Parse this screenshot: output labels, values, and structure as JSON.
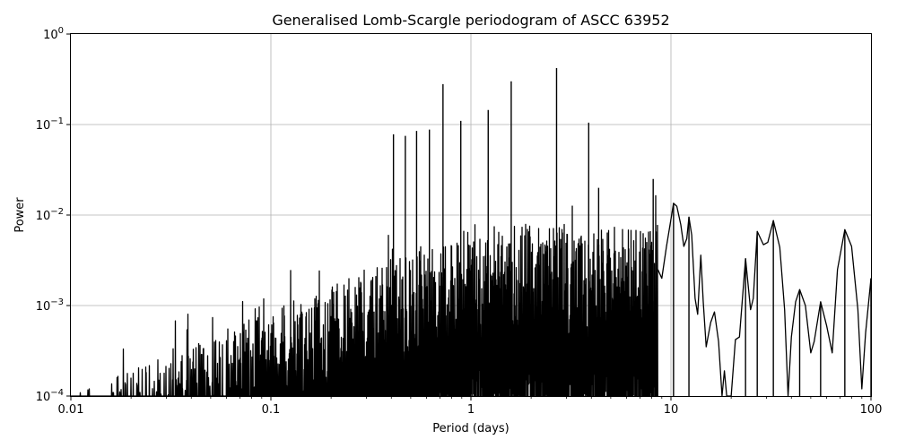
{
  "chart_data": {
    "type": "line",
    "title": "Generalised Lomb-Scargle periodogram of ASCC 63952",
    "xlabel": "Period (days)",
    "ylabel": "Power",
    "xscale": "log",
    "yscale": "log",
    "xlim": [
      0.01,
      100
    ],
    "ylim": [
      0.0001,
      1
    ],
    "grid": true,
    "x_ticks": [
      "0.01",
      "0.1",
      "1",
      "10",
      "100"
    ],
    "y_ticks": [
      {
        "base": "10",
        "exp": "−4"
      },
      {
        "base": "10",
        "exp": "−3"
      },
      {
        "base": "10",
        "exp": "−2"
      },
      {
        "base": "10",
        "exp": "−1"
      },
      {
        "base": "10",
        "exp": "0"
      }
    ],
    "series_color": "#000000",
    "peaks": [
      {
        "x": 0.41,
        "y": 0.078
      },
      {
        "x": 0.47,
        "y": 0.075
      },
      {
        "x": 0.535,
        "y": 0.085
      },
      {
        "x": 0.62,
        "y": 0.088
      },
      {
        "x": 0.725,
        "y": 0.28
      },
      {
        "x": 0.89,
        "y": 0.11
      },
      {
        "x": 1.22,
        "y": 0.145
      },
      {
        "x": 1.59,
        "y": 0.3
      },
      {
        "x": 2.68,
        "y": 0.42
      },
      {
        "x": 3.88,
        "y": 0.105
      },
      {
        "x": 4.35,
        "y": 0.02
      },
      {
        "x": 8.15,
        "y": 0.025
      },
      {
        "x": 10.3,
        "y": 0.0135
      },
      {
        "x": 12.3,
        "y": 0.0095
      },
      {
        "x": 23.6,
        "y": 0.0033
      },
      {
        "x": 27.0,
        "y": 0.0066
      },
      {
        "x": 32.5,
        "y": 0.0087
      },
      {
        "x": 44.0,
        "y": 0.0015
      },
      {
        "x": 56.0,
        "y": 0.0011
      },
      {
        "x": 74.0,
        "y": 0.0069
      },
      {
        "x": 100.0,
        "y": 0.002
      }
    ],
    "curve": [
      [
        8.6,
        0.0025
      ],
      [
        9.0,
        0.002
      ],
      [
        9.5,
        0.0045
      ],
      [
        10.0,
        0.009
      ],
      [
        10.3,
        0.0135
      ],
      [
        10.7,
        0.0125
      ],
      [
        11.2,
        0.0078
      ],
      [
        11.6,
        0.0045
      ],
      [
        12.0,
        0.0055
      ],
      [
        12.3,
        0.0095
      ],
      [
        12.7,
        0.006
      ],
      [
        13.2,
        0.0012
      ],
      [
        13.6,
        0.0008
      ],
      [
        14.1,
        0.0036
      ],
      [
        14.5,
        0.0011
      ],
      [
        15.0,
        0.00035
      ],
      [
        15.8,
        0.00065
      ],
      [
        16.5,
        0.00085
      ],
      [
        17.3,
        0.0004
      ],
      [
        18.0,
        0.0001
      ],
      [
        18.5,
        0.00019
      ],
      [
        19.0,
        0.0001
      ],
      [
        20.0,
        0.0001
      ],
      [
        21.0,
        0.00042
      ],
      [
        22.0,
        0.00045
      ],
      [
        23.6,
        0.0033
      ],
      [
        25.0,
        0.0009
      ],
      [
        25.8,
        0.0012
      ],
      [
        27.0,
        0.0066
      ],
      [
        29.0,
        0.0047
      ],
      [
        30.5,
        0.005
      ],
      [
        32.5,
        0.0087
      ],
      [
        35.0,
        0.0044
      ],
      [
        37.0,
        0.0009
      ],
      [
        38.5,
        0.0001
      ],
      [
        40.0,
        0.00045
      ],
      [
        42.0,
        0.0011
      ],
      [
        44.0,
        0.0015
      ],
      [
        47.0,
        0.001
      ],
      [
        50.0,
        0.0003
      ],
      [
        52.0,
        0.0004
      ],
      [
        56.0,
        0.0011
      ],
      [
        60.0,
        0.0006
      ],
      [
        64.0,
        0.0003
      ],
      [
        68.0,
        0.0025
      ],
      [
        74.0,
        0.0069
      ],
      [
        80.0,
        0.0045
      ],
      [
        86.0,
        0.0009
      ],
      [
        90.0,
        0.00012
      ],
      [
        94.0,
        0.0005
      ],
      [
        100.0,
        0.002
      ]
    ]
  }
}
